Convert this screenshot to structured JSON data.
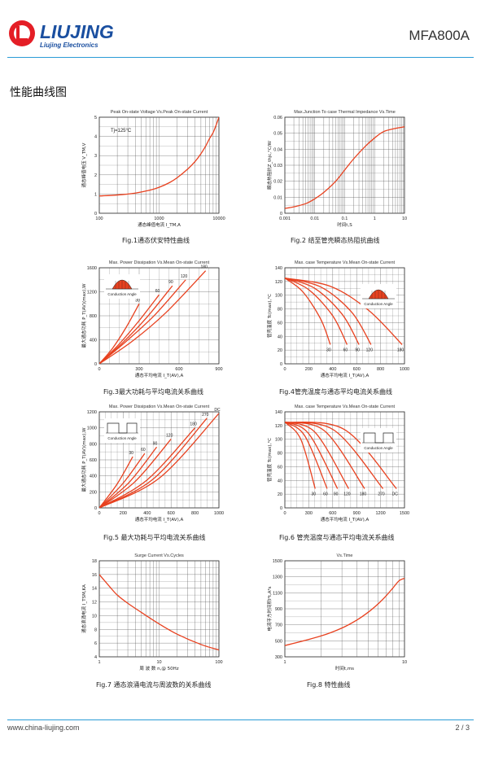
{
  "header": {
    "brand": "LIUJING",
    "brand_sub": "Liujing Electronics",
    "product": "MFA800A",
    "accent_color": "#2a9bd6",
    "brand_color": "#1a4fa0",
    "logo_red": "#e41e26"
  },
  "section_title": "性能曲线图",
  "footer": {
    "url": "www.china-liujing.com",
    "page": "2 / 3"
  },
  "chart_data": [
    {
      "id": "fig1",
      "type": "line",
      "title": "Peak On-state Voltage Vs.Peak On-state Current",
      "xlabel": "通态峰值电流 I_TM,A",
      "ylabel": "通态峰值电压 V_TM,V",
      "xscale": "log",
      "xlim": [
        100,
        10000
      ],
      "ylim": [
        0,
        5
      ],
      "xticks": [
        100,
        1000,
        10000
      ],
      "yticks": [
        0,
        1,
        2,
        3,
        4,
        5
      ],
      "annotation": "Tj=125°C",
      "caption": "Fig.1通态伏安特性曲线",
      "series": [
        {
          "x": [
            100,
            200,
            400,
            700,
            1000,
            1500,
            2000,
            3000,
            4000,
            5000,
            6000,
            7000,
            8000,
            9000,
            10000
          ],
          "y": [
            0.9,
            0.95,
            1.05,
            1.2,
            1.35,
            1.6,
            1.85,
            2.3,
            2.7,
            3.1,
            3.5,
            3.9,
            4.2,
            4.6,
            5.0
          ]
        }
      ]
    },
    {
      "id": "fig2",
      "type": "line",
      "title": "Max.Junction To case Thermal Impedance Vs.Time",
      "xlabel": "时间t,S",
      "ylabel": "瞬态热阻抗Z_thjc,°C/W",
      "xscale": "log",
      "xlim": [
        0.001,
        10
      ],
      "ylim": [
        0,
        0.06
      ],
      "xticks": [
        0.001,
        0.01,
        0.1,
        1,
        10
      ],
      "xtick_labels": [
        "0.001",
        "0.01",
        "0.1",
        "1",
        "10"
      ],
      "yticks": [
        0,
        0.01,
        0.02,
        0.03,
        0.04,
        0.05,
        0.06
      ],
      "caption": "Fig.2 结至管壳瞬态热阻抗曲线",
      "series": [
        {
          "x": [
            0.001,
            0.002,
            0.005,
            0.01,
            0.02,
            0.05,
            0.1,
            0.2,
            0.5,
            1,
            2,
            5,
            10
          ],
          "y": [
            0.003,
            0.004,
            0.006,
            0.009,
            0.013,
            0.02,
            0.027,
            0.034,
            0.042,
            0.047,
            0.051,
            0.053,
            0.054
          ]
        }
      ]
    },
    {
      "id": "fig3",
      "type": "line",
      "title": "Max. Power Dissipation Vs.Mean On-state Current",
      "xlabel": "通态平均电流 I_T(AV),A",
      "ylabel": "最大通态功耗 P_T(AV)(max),W",
      "xlim": [
        0,
        900
      ],
      "ylim": [
        0,
        1600
      ],
      "xticks": [
        0,
        300,
        600,
        900
      ],
      "yticks": [
        0,
        400,
        800,
        1200,
        1600
      ],
      "inset": "sine",
      "inset_label": "Conduction Angle",
      "caption": "Fig.3最大功耗与平均电流关系曲线",
      "series": [
        {
          "name": "30",
          "x": [
            0,
            100,
            200,
            300
          ],
          "y": [
            0,
            260,
            600,
            1000
          ]
        },
        {
          "name": "60",
          "x": [
            0,
            150,
            300,
            450
          ],
          "y": [
            0,
            330,
            720,
            1150
          ]
        },
        {
          "name": "90",
          "x": [
            0,
            180,
            360,
            550
          ],
          "y": [
            0,
            360,
            780,
            1300
          ]
        },
        {
          "name": "120",
          "x": [
            0,
            200,
            420,
            650
          ],
          "y": [
            0,
            370,
            820,
            1400
          ]
        },
        {
          "name": "180",
          "x": [
            0,
            250,
            500,
            800
          ],
          "y": [
            0,
            380,
            850,
            1550
          ]
        }
      ]
    },
    {
      "id": "fig4",
      "type": "line",
      "title": "Max. case Temperature Vs.Mean On-state Current",
      "xlabel": "通态平均电流 I_T(AV),A",
      "ylabel": "管壳温度 Tc(max),°C",
      "xlim": [
        0,
        1000
      ],
      "ylim": [
        0,
        140
      ],
      "xticks": [
        0,
        200,
        400,
        600,
        800,
        1000
      ],
      "yticks": [
        0,
        20,
        40,
        60,
        80,
        100,
        120,
        140
      ],
      "inset": "sine",
      "inset_label": "Conduction Angle",
      "caption": "Fig.4管壳温度与通态平均电流关系曲线",
      "series": [
        {
          "name": "30",
          "x": [
            0,
            150,
            300,
            380
          ],
          "y": [
            125,
            105,
            65,
            28
          ]
        },
        {
          "name": "60",
          "x": [
            0,
            200,
            400,
            520
          ],
          "y": [
            125,
            108,
            70,
            28
          ]
        },
        {
          "name": "90",
          "x": [
            0,
            250,
            480,
            620
          ],
          "y": [
            125,
            110,
            72,
            28
          ]
        },
        {
          "name": "120",
          "x": [
            0,
            300,
            560,
            720
          ],
          "y": [
            125,
            112,
            75,
            28
          ]
        },
        {
          "name": "180",
          "x": [
            0,
            380,
            700,
            980
          ],
          "y": [
            125,
            113,
            78,
            28
          ]
        }
      ]
    },
    {
      "id": "fig5",
      "type": "line",
      "title": "Max. Power Dissipation Vs.Mean On-state Current",
      "xlabel": "通态平均电流 I_T(AV),A",
      "ylabel": "最大通态功耗 P_T(AV)(max),W",
      "xlim": [
        0,
        1000
      ],
      "ylim": [
        0,
        1200
      ],
      "xticks": [
        0,
        200,
        400,
        600,
        800,
        1000
      ],
      "yticks": [
        0,
        200,
        400,
        600,
        800,
        1000,
        1200
      ],
      "inset": "square",
      "inset_label": "Conduction Angle",
      "caption": "Fig.5 最大功耗与平均电流关系曲线",
      "series": [
        {
          "name": "30",
          "x": [
            0,
            150,
            280
          ],
          "y": [
            0,
            300,
            640
          ]
        },
        {
          "name": "60",
          "x": [
            0,
            200,
            380
          ],
          "y": [
            0,
            310,
            680
          ]
        },
        {
          "name": "90",
          "x": [
            0,
            250,
            480
          ],
          "y": [
            0,
            320,
            760
          ]
        },
        {
          "name": "120",
          "x": [
            0,
            300,
            600
          ],
          "y": [
            0,
            330,
            860
          ]
        },
        {
          "name": "180",
          "x": [
            0,
            400,
            800
          ],
          "y": [
            0,
            350,
            1000
          ]
        },
        {
          "name": "270",
          "x": [
            0,
            450,
            900
          ],
          "y": [
            0,
            360,
            1120
          ]
        },
        {
          "name": "DC",
          "x": [
            0,
            500,
            1000
          ],
          "y": [
            0,
            370,
            1180
          ]
        }
      ]
    },
    {
      "id": "fig6",
      "type": "line",
      "title": "Max. case Temperature Vs.Mean On-state Current",
      "xlabel": "通态平均电流 I_T(AV),A",
      "ylabel": "管壳温度 Tc(max),°C",
      "xlim": [
        0,
        1500
      ],
      "ylim": [
        0,
        140
      ],
      "xticks": [
        0,
        300,
        600,
        900,
        1200,
        1500
      ],
      "yticks": [
        0,
        20,
        40,
        60,
        80,
        100,
        120,
        140
      ],
      "inset": "square",
      "inset_label": "Conduction Angle",
      "caption": "Fig.6 管壳温度与通态平均电流关系曲线",
      "series": [
        {
          "name": "30",
          "x": [
            0,
            200,
            380
          ],
          "y": [
            125,
            100,
            28
          ]
        },
        {
          "name": "60",
          "x": [
            0,
            250,
            530
          ],
          "y": [
            125,
            105,
            28
          ]
        },
        {
          "name": "90",
          "x": [
            0,
            300,
            660
          ],
          "y": [
            125,
            108,
            28
          ]
        },
        {
          "name": "120",
          "x": [
            0,
            380,
            800
          ],
          "y": [
            125,
            110,
            28
          ]
        },
        {
          "name": "180",
          "x": [
            0,
            500,
            1000
          ],
          "y": [
            125,
            112,
            28
          ]
        },
        {
          "name": "270",
          "x": [
            0,
            620,
            1230
          ],
          "y": [
            125,
            113,
            28
          ]
        },
        {
          "name": "DC",
          "x": [
            0,
            750,
            1400
          ],
          "y": [
            125,
            114,
            28
          ]
        }
      ]
    },
    {
      "id": "fig7",
      "type": "line",
      "title": "Surge Current Vs.Cycles",
      "xlabel": "周 波 数 n,@ 50Hz",
      "ylabel": "通态浪涌电流 I_TSM,KA",
      "xscale": "log",
      "xlim": [
        1,
        100
      ],
      "ylim": [
        4,
        18
      ],
      "xticks": [
        1,
        10,
        100
      ],
      "yticks": [
        4,
        6,
        8,
        10,
        12,
        14,
        16,
        18
      ],
      "caption": "Fig.7 通态浪涌电流与周波数的关系曲线",
      "series": [
        {
          "x": [
            1,
            1.5,
            2,
            3,
            5,
            10,
            20,
            50,
            100
          ],
          "y": [
            16,
            14.2,
            13.0,
            11.8,
            10.5,
            8.8,
            7.3,
            5.8,
            5.0
          ]
        }
      ]
    },
    {
      "id": "fig8",
      "type": "line",
      "title": "Vs.Time",
      "xlabel": "时间t,ms",
      "ylabel": "电流平方时间积I²t,A²s",
      "xscale": "log",
      "xlim": [
        1,
        10
      ],
      "ylim": [
        300,
        1500
      ],
      "xticks": [
        1,
        10
      ],
      "yticks": [
        300,
        500,
        700,
        900,
        1100,
        1300,
        1500
      ],
      "caption": "Fig.8 特性曲线",
      "series": [
        {
          "x": [
            1,
            2,
            3,
            4,
            5,
            6,
            7,
            8,
            9,
            10
          ],
          "y": [
            440,
            560,
            660,
            760,
            860,
            960,
            1060,
            1160,
            1250,
            1280
          ]
        }
      ]
    }
  ]
}
